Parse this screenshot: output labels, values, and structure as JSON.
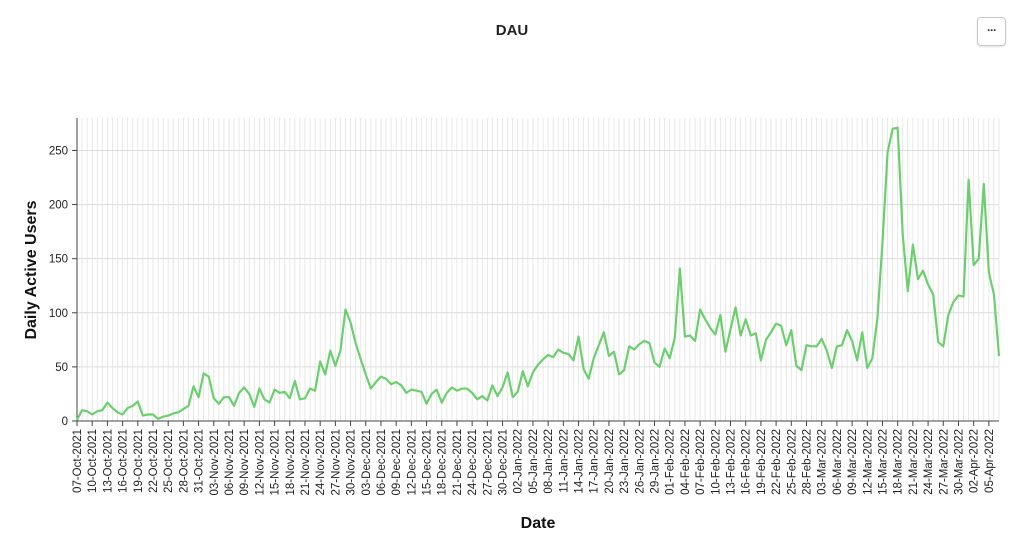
{
  "menu": {
    "icon": "more-horizontal-icon",
    "label": "···"
  },
  "chart_data": {
    "type": "line",
    "title": "DAU",
    "xlabel": "Date",
    "ylabel": "Daily Active Users",
    "ylim": [
      0,
      280
    ],
    "yticks": [
      0,
      50,
      100,
      150,
      200,
      250
    ],
    "grid": true,
    "legend": "none",
    "color": "#6ccf6e",
    "x_start": "2021-10-07",
    "x_tick_every_days": 3,
    "x_ticks": [
      "07-Oct-2021",
      "10-Oct-2021",
      "13-Oct-2021",
      "16-Oct-2021",
      "19-Oct-2021",
      "22-Oct-2021",
      "25-Oct-2021",
      "28-Oct-2021",
      "31-Oct-2021",
      "03-Nov-2021",
      "06-Nov-2021",
      "09-Nov-2021",
      "12-Nov-2021",
      "15-Nov-2021",
      "18-Nov-2021",
      "21-Nov-2021",
      "24-Nov-2021",
      "27-Nov-2021",
      "30-Nov-2021",
      "03-Dec-2021",
      "06-Dec-2021",
      "09-Dec-2021",
      "12-Dec-2021",
      "15-Dec-2021",
      "18-Dec-2021",
      "21-Dec-2021",
      "24-Dec-2021",
      "27-Dec-2021",
      "30-Dec-2021",
      "02-Jan-2022",
      "05-Jan-2022",
      "08-Jan-2022",
      "11-Jan-2022",
      "14-Jan-2022",
      "17-Jan-2022",
      "20-Jan-2022",
      "23-Jan-2022",
      "26-Jan-2022",
      "29-Jan-2022",
      "01-Feb-2022",
      "04-Feb-2022",
      "07-Feb-2022",
      "10-Feb-2022",
      "13-Feb-2022",
      "16-Feb-2022",
      "19-Feb-2022",
      "22-Feb-2022",
      "25-Feb-2022",
      "28-Feb-2022",
      "03-Mar-2022",
      "06-Mar-2022",
      "09-Mar-2022",
      "12-Mar-2022",
      "15-Mar-2022",
      "18-Mar-2022",
      "21-Mar-2022",
      "24-Mar-2022",
      "27-Mar-2022",
      "30-Mar-2022",
      "02-Apr-2022",
      "05-Apr-2022"
    ],
    "series": [
      {
        "values": [
          1,
          10,
          9,
          6,
          9,
          10,
          17,
          12,
          8,
          6,
          12,
          14,
          18,
          5,
          6,
          6,
          2,
          4,
          5,
          7,
          8,
          11,
          14,
          32,
          22,
          44,
          41,
          21,
          16,
          22,
          22,
          14,
          26,
          31,
          25,
          13,
          30,
          20,
          17,
          29,
          26,
          27,
          21,
          37,
          20,
          21,
          30,
          28,
          55,
          43,
          65,
          51,
          65,
          103,
          91,
          72,
          57,
          43,
          30,
          36,
          41,
          39,
          34,
          36,
          33,
          26,
          29,
          28,
          27,
          16,
          25,
          29,
          17,
          26,
          31,
          28,
          30,
          30,
          26,
          20,
          23,
          19,
          33,
          23,
          31,
          45,
          22,
          27,
          46,
          32,
          45,
          52,
          57,
          61,
          59,
          66,
          63,
          62,
          56,
          78,
          48,
          39,
          58,
          70,
          82,
          60,
          64,
          43,
          47,
          69,
          66,
          71,
          74,
          72,
          54,
          50,
          67,
          58,
          77,
          141,
          78,
          79,
          74,
          103,
          94,
          86,
          80,
          98,
          64,
          85,
          105,
          79,
          94,
          79,
          81,
          56,
          75,
          82,
          90,
          88,
          70,
          84,
          51,
          47,
          70,
          69,
          69,
          76,
          65,
          49,
          69,
          70,
          84,
          74,
          56,
          82,
          49,
          58,
          95,
          165,
          248,
          270,
          271,
          172,
          120,
          163,
          131,
          139,
          126,
          117,
          73,
          69,
          98,
          110,
          116,
          115,
          223,
          144,
          150,
          219,
          137,
          117,
          60
        ]
      }
    ]
  }
}
